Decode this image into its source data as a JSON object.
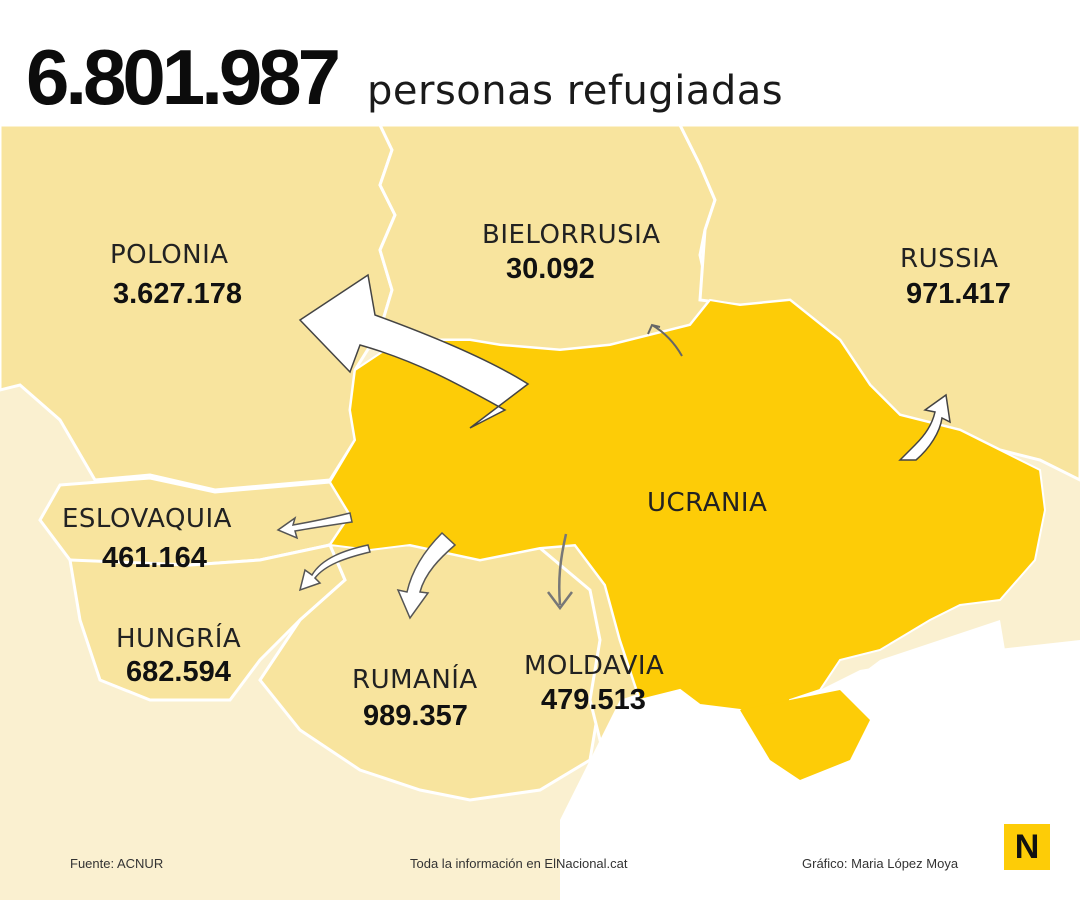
{
  "header": {
    "total": "6.801.987",
    "subtitle": "personas refugiadas"
  },
  "countries": {
    "poland": {
      "name": "POLONIA",
      "count": "3.627.178"
    },
    "belarus": {
      "name": "BIELORRUSIA",
      "count": "30.092"
    },
    "russia": {
      "name": "RUSSIA",
      "count": "971.417"
    },
    "ukraine": {
      "name": "UCRANIA"
    },
    "slovakia": {
      "name": "ESLOVAQUIA",
      "count": "461.164"
    },
    "hungary": {
      "name": "HUNGRÍA",
      "count": "682.594"
    },
    "romania": {
      "name": "RUMANÍA",
      "count": "989.357"
    },
    "moldova": {
      "name": "MOLDAVIA",
      "count": "479.513"
    }
  },
  "footer": {
    "source": "Fuente: ACNUR",
    "info": "Toda la información en ElNacional.cat",
    "credit": "Gráfico: Maria López Moya"
  },
  "logo": {
    "letter": "N"
  },
  "colors": {
    "ukraine": "#fdcc07",
    "neighbors": "#f8e49e",
    "outer": "#faf0d0",
    "sea": "#ffffff",
    "borders": "#ffffff",
    "arrows": "#ffffff"
  },
  "icons": [
    "refugee-flow-arrow",
    "elnacional-logo"
  ]
}
